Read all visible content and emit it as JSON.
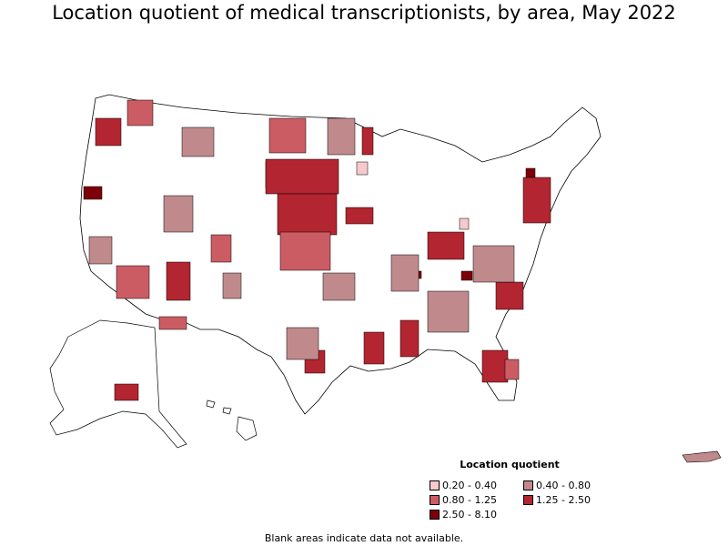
{
  "title": "Location quotient of medical transcriptionists, by area, May 2022",
  "legend": {
    "title": "Location quotient",
    "items": [
      {
        "label": "0.20 - 0.40",
        "color": "#f6c9cd"
      },
      {
        "label": "0.40 - 0.80",
        "color": "#c08a8d"
      },
      {
        "label": "0.80 - 1.25",
        "color": "#cc5c63"
      },
      {
        "label": "1.25 - 2.50",
        "color": "#b32530"
      },
      {
        "label": "2.50 - 8.10",
        "color": "#7d0008"
      }
    ]
  },
  "footnote": "Blank areas indicate data not available.",
  "colors": {
    "border": "#000000",
    "blank": "#ffffff"
  }
}
